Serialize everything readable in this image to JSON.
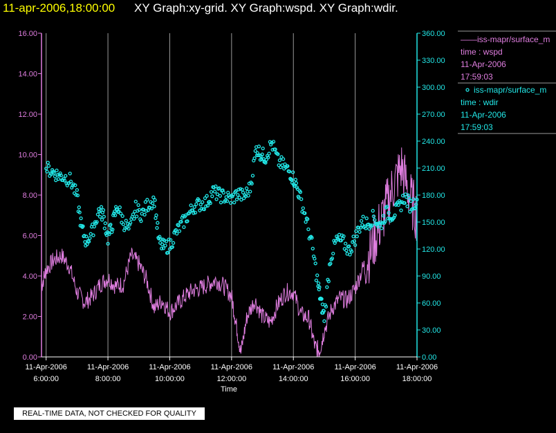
{
  "header": {
    "date": "11-apr-2006,18:00:00",
    "graphs": "XY Graph:xy-grid.  XY Graph:wspd.  XY Graph:wdir."
  },
  "colors": {
    "wspd": "#e07ee0",
    "wdir": "#22e8e8",
    "grid": "#9a9a9a",
    "background": "#000000"
  },
  "legend": {
    "entries": [
      {
        "symbol": "line",
        "color": "#e07ee0",
        "lines": [
          "——iss-mapr/surface_m",
          "time : wspd",
          "11-Apr-2006",
          "17:59:03"
        ]
      },
      {
        "symbol": "circle",
        "color": "#22e8e8",
        "lines": [
          "iss-mapr/surface_m",
          "time : wdir",
          "11-Apr-2006",
          "17:59:03"
        ]
      }
    ]
  },
  "disclaimer": "REAL-TIME DATA, NOT CHECKED FOR QUALITY",
  "chart_data": {
    "type": "line+scatter",
    "xlabel": "Time",
    "x_range": [
      5.85,
      18.0
    ],
    "x_ticks": [
      {
        "x": 6,
        "date": "11-Apr-2006",
        "time": "6:00:00"
      },
      {
        "x": 8,
        "date": "11-Apr-2006",
        "time": "8:00:00"
      },
      {
        "x": 10,
        "date": "11-Apr-2006",
        "time": "10:00:00"
      },
      {
        "x": 12,
        "date": "11-Apr-2006",
        "time": "12:00:00"
      },
      {
        "x": 14,
        "date": "11-Apr-2006",
        "time": "14:00:00"
      },
      {
        "x": 16,
        "date": "11-Apr-2006",
        "time": "16:00:00"
      },
      {
        "x": 18,
        "date": "11-Apr-2006",
        "time": "18:00:00"
      }
    ],
    "y_left": {
      "series": "wspd",
      "range": [
        0,
        16
      ],
      "ticks": [
        "0.00",
        "2.00",
        "4.00",
        "6.00",
        "8.00",
        "10.00",
        "12.00",
        "14.00",
        "16.00"
      ]
    },
    "y_right": {
      "series": "wdir",
      "range": [
        0,
        360
      ],
      "ticks": [
        "0.00",
        "30.00",
        "60.00",
        "90.00",
        "120.00",
        "150.00",
        "180.00",
        "210.00",
        "240.00",
        "270.00",
        "300.00",
        "330.00",
        "360.00"
      ]
    },
    "grid": "vertical",
    "series": [
      {
        "name": "wspd",
        "type": "line",
        "axis": "left",
        "x": [
          5.85,
          6.0,
          6.25,
          6.5,
          6.75,
          7.0,
          7.25,
          7.5,
          7.75,
          8.0,
          8.25,
          8.5,
          8.75,
          9.0,
          9.25,
          9.5,
          9.75,
          10.0,
          10.25,
          10.5,
          10.75,
          11.0,
          11.25,
          11.5,
          11.75,
          12.0,
          12.15,
          12.3,
          12.5,
          12.75,
          13.0,
          13.25,
          13.5,
          13.75,
          14.0,
          14.25,
          14.5,
          14.7,
          14.85,
          15.0,
          15.25,
          15.5,
          15.75,
          16.0,
          16.25,
          16.5,
          16.75,
          17.0,
          17.25,
          17.5,
          17.75,
          18.0
        ],
        "y": [
          3.5,
          4.3,
          4.8,
          5.0,
          4.5,
          3.2,
          2.7,
          3.0,
          3.6,
          3.9,
          3.5,
          3.6,
          5.0,
          4.6,
          3.8,
          2.4,
          2.8,
          2.2,
          2.6,
          3.0,
          3.3,
          3.4,
          3.6,
          3.8,
          3.5,
          3.0,
          1.6,
          0.2,
          2.0,
          2.8,
          2.0,
          1.7,
          2.6,
          3.2,
          3.2,
          2.1,
          1.9,
          0.5,
          0.3,
          1.3,
          2.4,
          2.9,
          2.8,
          3.4,
          4.4,
          5.2,
          6.3,
          7.4,
          8.5,
          9.4,
          8.0,
          7.0
        ]
      },
      {
        "name": "wdir",
        "type": "scatter",
        "axis": "right",
        "x": [
          6.0,
          6.2,
          6.4,
          6.6,
          6.8,
          7.0,
          7.15,
          7.3,
          7.5,
          7.7,
          7.85,
          8.0,
          8.15,
          8.3,
          8.5,
          8.7,
          8.9,
          9.1,
          9.3,
          9.5,
          9.65,
          9.8,
          10.0,
          10.2,
          10.4,
          10.6,
          10.8,
          11.0,
          11.2,
          11.4,
          11.6,
          11.8,
          12.0,
          12.2,
          12.4,
          12.6,
          12.8,
          12.95,
          13.1,
          13.3,
          13.5,
          13.7,
          13.9,
          14.05,
          14.2,
          14.4,
          14.6,
          14.8,
          14.9,
          15.0,
          15.2,
          15.4,
          15.6,
          15.8,
          16.0,
          16.2,
          16.4,
          16.6,
          16.8,
          17.0,
          17.2,
          17.4,
          17.6,
          17.8,
          18.0
        ],
        "y": [
          210,
          206,
          202,
          200,
          196,
          178,
          143,
          128,
          140,
          162,
          158,
          132,
          148,
          168,
          150,
          140,
          165,
          158,
          170,
          175,
          128,
          122,
          124,
          138,
          148,
          158,
          168,
          170,
          172,
          184,
          180,
          178,
          175,
          182,
          178,
          188,
          232,
          226,
          222,
          238,
          218,
          212,
          205,
          195,
          180,
          155,
          125,
          80,
          60,
          45,
          110,
          130,
          128,
          118,
          132,
          150,
          148,
          156,
          145,
          160,
          158,
          165,
          178,
          168,
          175
        ]
      }
    ]
  }
}
